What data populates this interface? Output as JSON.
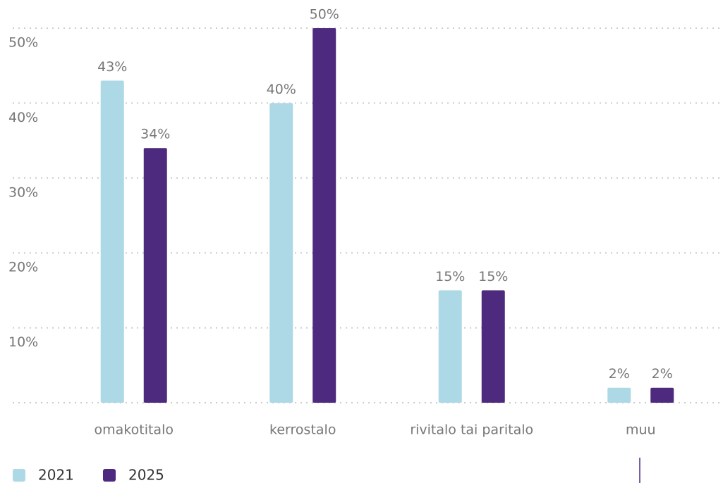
{
  "chart_data": {
    "type": "bar",
    "categories": [
      "omakotitalo",
      "kerrostalo",
      "rivitalo tai paritalo",
      "muu"
    ],
    "series": [
      {
        "name": "2021",
        "color": "#add8e6",
        "values": [
          43,
          40,
          15,
          2
        ],
        "value_labels": [
          "43%",
          "40%",
          "15%",
          "2%"
        ]
      },
      {
        "name": "2025",
        "color": "#4e2a7e",
        "values": [
          34,
          50,
          15,
          2
        ],
        "value_labels": [
          "34%",
          "50%",
          "15%",
          "2%"
        ]
      }
    ],
    "ylim": [
      0,
      50
    ],
    "yticks": [
      {
        "value": 10,
        "label": "10%"
      },
      {
        "value": 20,
        "label": "20%"
      },
      {
        "value": 30,
        "label": "30%"
      },
      {
        "value": 40,
        "label": "40%"
      },
      {
        "value": 50,
        "label": "50%"
      }
    ],
    "grid": true
  }
}
